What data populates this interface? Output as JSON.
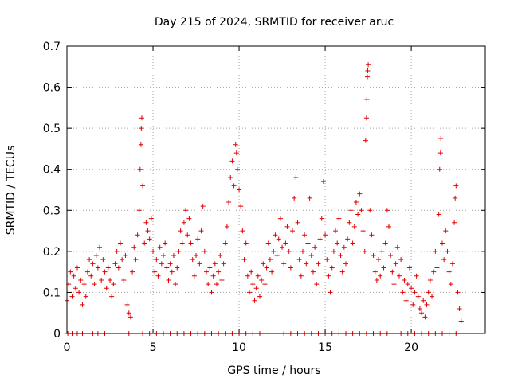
{
  "chart_data": {
    "type": "scatter",
    "title": "Day 215 of 2024, SRMTID for receiver aruc",
    "xlabel": "GPS time / hours",
    "ylabel": "SRMTID / TECUs",
    "xlim": [
      0,
      24.3
    ],
    "ylim": [
      0,
      0.7
    ],
    "xticks": [
      0,
      5,
      10,
      15,
      20
    ],
    "xtick_labels": [
      "0",
      "5",
      "10",
      "15",
      "20"
    ],
    "yticks": [
      0,
      0.1,
      0.2,
      0.3,
      0.4,
      0.5,
      0.6,
      0.7
    ],
    "ytick_labels": [
      "0",
      "0.1",
      "0.2",
      "0.3",
      "0.4",
      "0.5",
      "0.6",
      "0.7"
    ],
    "grid": true,
    "marker": "+",
    "color": "#e00000",
    "series": [
      {
        "name": "SRMTID",
        "points": [
          [
            0.0,
            0.08
          ],
          [
            0.1,
            0.12
          ],
          [
            0.2,
            0.15
          ],
          [
            0.3,
            0.09
          ],
          [
            0.4,
            0.14
          ],
          [
            0.5,
            0.11
          ],
          [
            0.6,
            0.16
          ],
          [
            0.7,
            0.1
          ],
          [
            0.8,
            0.13
          ],
          [
            0.9,
            0.07
          ],
          [
            1.0,
            0.12
          ],
          [
            1.1,
            0.09
          ],
          [
            1.2,
            0.15
          ],
          [
            1.3,
            0.18
          ],
          [
            1.4,
            0.14
          ],
          [
            1.5,
            0.17
          ],
          [
            1.6,
            0.12
          ],
          [
            1.7,
            0.19
          ],
          [
            1.8,
            0.16
          ],
          [
            1.9,
            0.21
          ],
          [
            2.0,
            0.13
          ],
          [
            2.1,
            0.18
          ],
          [
            2.2,
            0.15
          ],
          [
            2.3,
            0.11
          ],
          [
            2.4,
            0.16
          ],
          [
            2.5,
            0.13
          ],
          [
            2.6,
            0.09
          ],
          [
            2.7,
            0.12
          ],
          [
            2.8,
            0.17
          ],
          [
            2.9,
            0.2
          ],
          [
            3.0,
            0.16
          ],
          [
            3.1,
            0.22
          ],
          [
            3.2,
            0.18
          ],
          [
            3.3,
            0.13
          ],
          [
            3.4,
            0.19
          ],
          [
            3.5,
            0.07
          ],
          [
            3.6,
            0.05
          ],
          [
            3.7,
            0.04
          ],
          [
            3.8,
            0.15
          ],
          [
            3.9,
            0.21
          ],
          [
            4.0,
            0.18
          ],
          [
            4.1,
            0.24
          ],
          [
            4.2,
            0.3
          ],
          [
            4.25,
            0.4
          ],
          [
            4.3,
            0.46
          ],
          [
            4.32,
            0.5
          ],
          [
            4.35,
            0.525
          ],
          [
            4.4,
            0.36
          ],
          [
            4.5,
            0.22
          ],
          [
            4.6,
            0.27
          ],
          [
            4.7,
            0.25
          ],
          [
            4.8,
            0.23
          ],
          [
            4.9,
            0.28
          ],
          [
            5.0,
            0.2
          ],
          [
            5.1,
            0.15
          ],
          [
            5.2,
            0.18
          ],
          [
            5.3,
            0.14
          ],
          [
            5.4,
            0.21
          ],
          [
            5.5,
            0.17
          ],
          [
            5.6,
            0.19
          ],
          [
            5.7,
            0.22
          ],
          [
            5.8,
            0.16
          ],
          [
            5.9,
            0.13
          ],
          [
            6.0,
            0.17
          ],
          [
            6.1,
            0.15
          ],
          [
            6.2,
            0.19
          ],
          [
            6.3,
            0.12
          ],
          [
            6.4,
            0.16
          ],
          [
            6.5,
            0.2
          ],
          [
            6.6,
            0.25
          ],
          [
            6.7,
            0.22
          ],
          [
            6.8,
            0.27
          ],
          [
            6.9,
            0.3
          ],
          [
            7.0,
            0.24
          ],
          [
            7.1,
            0.28
          ],
          [
            7.2,
            0.22
          ],
          [
            7.3,
            0.18
          ],
          [
            7.4,
            0.14
          ],
          [
            7.5,
            0.19
          ],
          [
            7.6,
            0.23
          ],
          [
            7.7,
            0.17
          ],
          [
            7.8,
            0.25
          ],
          [
            7.9,
            0.31
          ],
          [
            8.0,
            0.2
          ],
          [
            8.1,
            0.15
          ],
          [
            8.2,
            0.12
          ],
          [
            8.3,
            0.16
          ],
          [
            8.4,
            0.1
          ],
          [
            8.5,
            0.14
          ],
          [
            8.6,
            0.17
          ],
          [
            8.7,
            0.12
          ],
          [
            8.8,
            0.15
          ],
          [
            8.9,
            0.19
          ],
          [
            9.0,
            0.13
          ],
          [
            9.1,
            0.17
          ],
          [
            9.2,
            0.22
          ],
          [
            9.3,
            0.26
          ],
          [
            9.4,
            0.32
          ],
          [
            9.5,
            0.38
          ],
          [
            9.6,
            0.42
          ],
          [
            9.7,
            0.36
          ],
          [
            9.8,
            0.46
          ],
          [
            9.85,
            0.44
          ],
          [
            9.9,
            0.4
          ],
          [
            10.0,
            0.35
          ],
          [
            10.1,
            0.31
          ],
          [
            10.2,
            0.25
          ],
          [
            10.3,
            0.18
          ],
          [
            10.4,
            0.22
          ],
          [
            10.5,
            0.14
          ],
          [
            10.6,
            0.1
          ],
          [
            10.7,
            0.15
          ],
          [
            10.8,
            0.12
          ],
          [
            10.9,
            0.08
          ],
          [
            11.0,
            0.11
          ],
          [
            11.1,
            0.14
          ],
          [
            11.2,
            0.09
          ],
          [
            11.3,
            0.13
          ],
          [
            11.4,
            0.17
          ],
          [
            11.5,
            0.12
          ],
          [
            11.6,
            0.16
          ],
          [
            11.7,
            0.22
          ],
          [
            11.8,
            0.18
          ],
          [
            11.9,
            0.15
          ],
          [
            12.0,
            0.2
          ],
          [
            12.1,
            0.24
          ],
          [
            12.2,
            0.19
          ],
          [
            12.3,
            0.23
          ],
          [
            12.4,
            0.28
          ],
          [
            12.5,
            0.21
          ],
          [
            12.6,
            0.17
          ],
          [
            12.7,
            0.22
          ],
          [
            12.8,
            0.26
          ],
          [
            12.9,
            0.2
          ],
          [
            13.0,
            0.16
          ],
          [
            13.1,
            0.25
          ],
          [
            13.2,
            0.33
          ],
          [
            13.3,
            0.38
          ],
          [
            13.4,
            0.27
          ],
          [
            13.5,
            0.18
          ],
          [
            13.6,
            0.14
          ],
          [
            13.7,
            0.2
          ],
          [
            13.8,
            0.24
          ],
          [
            13.9,
            0.17
          ],
          [
            14.0,
            0.22
          ],
          [
            14.1,
            0.33
          ],
          [
            14.2,
            0.19
          ],
          [
            14.3,
            0.15
          ],
          [
            14.4,
            0.21
          ],
          [
            14.5,
            0.12
          ],
          [
            14.6,
            0.17
          ],
          [
            14.7,
            0.23
          ],
          [
            14.8,
            0.28
          ],
          [
            14.9,
            0.37
          ],
          [
            15.0,
            0.24
          ],
          [
            15.1,
            0.18
          ],
          [
            15.2,
            0.14
          ],
          [
            15.3,
            0.1
          ],
          [
            15.4,
            0.16
          ],
          [
            15.5,
            0.2
          ],
          [
            15.6,
            0.25
          ],
          [
            15.7,
            0.22
          ],
          [
            15.8,
            0.28
          ],
          [
            15.9,
            0.19
          ],
          [
            16.0,
            0.15
          ],
          [
            16.1,
            0.21
          ],
          [
            16.2,
            0.17
          ],
          [
            16.3,
            0.23
          ],
          [
            16.4,
            0.27
          ],
          [
            16.5,
            0.3
          ],
          [
            16.6,
            0.22
          ],
          [
            16.7,
            0.26
          ],
          [
            16.8,
            0.32
          ],
          [
            16.9,
            0.29
          ],
          [
            17.0,
            0.34
          ],
          [
            17.1,
            0.3
          ],
          [
            17.2,
            0.25
          ],
          [
            17.3,
            0.2
          ],
          [
            17.35,
            0.47
          ],
          [
            17.4,
            0.525
          ],
          [
            17.42,
            0.57
          ],
          [
            17.45,
            0.625
          ],
          [
            17.47,
            0.64
          ],
          [
            17.5,
            0.655
          ],
          [
            17.6,
            0.3
          ],
          [
            17.7,
            0.24
          ],
          [
            17.8,
            0.19
          ],
          [
            17.9,
            0.15
          ],
          [
            18.0,
            0.13
          ],
          [
            18.1,
            0.18
          ],
          [
            18.2,
            0.14
          ],
          [
            18.3,
            0.2
          ],
          [
            18.4,
            0.16
          ],
          [
            18.5,
            0.22
          ],
          [
            18.6,
            0.3
          ],
          [
            18.7,
            0.26
          ],
          [
            18.8,
            0.19
          ],
          [
            18.9,
            0.15
          ],
          [
            19.0,
            0.12
          ],
          [
            19.1,
            0.17
          ],
          [
            19.2,
            0.21
          ],
          [
            19.3,
            0.14
          ],
          [
            19.4,
            0.18
          ],
          [
            19.5,
            0.1
          ],
          [
            19.6,
            0.13
          ],
          [
            19.7,
            0.08
          ],
          [
            19.8,
            0.12
          ],
          [
            19.9,
            0.16
          ],
          [
            20.0,
            0.11
          ],
          [
            20.1,
            0.07
          ],
          [
            20.2,
            0.1
          ],
          [
            20.3,
            0.14
          ],
          [
            20.4,
            0.09
          ],
          [
            20.5,
            0.06
          ],
          [
            20.6,
            0.05
          ],
          [
            20.7,
            0.08
          ],
          [
            20.8,
            0.04
          ],
          [
            20.9,
            0.07
          ],
          [
            21.0,
            0.1
          ],
          [
            21.1,
            0.13
          ],
          [
            21.2,
            0.09
          ],
          [
            21.3,
            0.15
          ],
          [
            21.4,
            0.2
          ],
          [
            21.5,
            0.16
          ],
          [
            21.6,
            0.29
          ],
          [
            21.65,
            0.4
          ],
          [
            21.7,
            0.44
          ],
          [
            21.72,
            0.475
          ],
          [
            21.8,
            0.22
          ],
          [
            21.9,
            0.18
          ],
          [
            22.0,
            0.25
          ],
          [
            22.1,
            0.2
          ],
          [
            22.2,
            0.15
          ],
          [
            22.3,
            0.12
          ],
          [
            22.4,
            0.17
          ],
          [
            22.5,
            0.27
          ],
          [
            22.55,
            0.33
          ],
          [
            22.6,
            0.36
          ],
          [
            22.7,
            0.1
          ],
          [
            22.8,
            0.06
          ],
          [
            22.9,
            0.03
          ],
          [
            0.05,
            0.0
          ],
          [
            0.3,
            0.0
          ],
          [
            0.6,
            0.0
          ],
          [
            0.9,
            0.0
          ],
          [
            1.5,
            0.0
          ],
          [
            1.8,
            0.0
          ],
          [
            2.2,
            0.0
          ],
          [
            3.6,
            0.0
          ],
          [
            4.4,
            0.0
          ],
          [
            4.8,
            0.0
          ],
          [
            5.2,
            0.0
          ],
          [
            5.6,
            0.0
          ],
          [
            6.0,
            0.0
          ],
          [
            6.4,
            0.0
          ],
          [
            6.8,
            0.0
          ],
          [
            7.2,
            0.0
          ],
          [
            7.6,
            0.0
          ],
          [
            8.0,
            0.0
          ],
          [
            8.4,
            0.0
          ],
          [
            8.8,
            0.0
          ],
          [
            9.2,
            0.0
          ],
          [
            9.6,
            0.0
          ],
          [
            10.0,
            0.0
          ],
          [
            10.4,
            0.0
          ],
          [
            10.8,
            0.0
          ],
          [
            11.2,
            0.0
          ],
          [
            12.6,
            0.0
          ],
          [
            13.0,
            0.0
          ],
          [
            13.4,
            0.0
          ],
          [
            13.8,
            0.0
          ],
          [
            14.2,
            0.0
          ],
          [
            14.6,
            0.0
          ],
          [
            15.0,
            0.0
          ],
          [
            15.4,
            0.0
          ],
          [
            15.8,
            0.0
          ],
          [
            16.2,
            0.0
          ],
          [
            16.6,
            0.0
          ],
          [
            17.0,
            0.0
          ],
          [
            17.4,
            0.0
          ],
          [
            17.8,
            0.0
          ],
          [
            18.2,
            0.0
          ],
          [
            18.6,
            0.0
          ],
          [
            19.0,
            0.0
          ],
          [
            19.4,
            0.0
          ],
          [
            19.8,
            0.0
          ],
          [
            20.2,
            0.0
          ],
          [
            20.6,
            0.0
          ],
          [
            21.0,
            0.0
          ],
          [
            21.4,
            0.0
          ],
          [
            21.8,
            0.0
          ],
          [
            22.2,
            0.0
          ],
          [
            22.6,
            0.0
          ]
        ]
      }
    ]
  }
}
